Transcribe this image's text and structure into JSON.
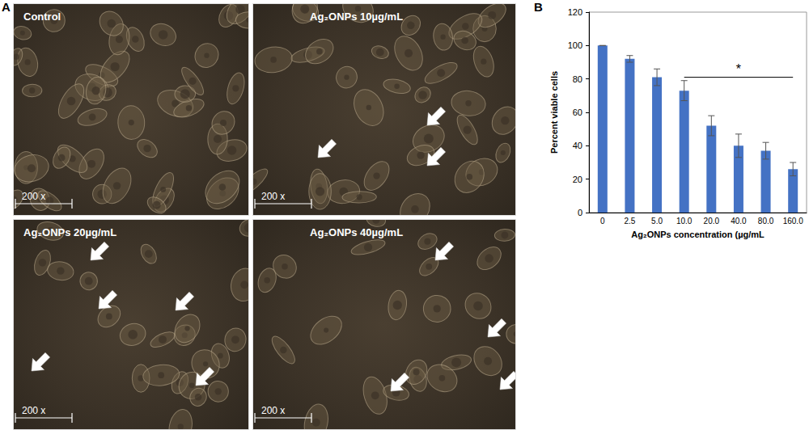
{
  "microscopy": {
    "letter": "A",
    "scale_bar": "200 x",
    "panels": [
      {
        "label": "Control"
      },
      {
        "label": "Ag₂ONPs 10µg/mL"
      },
      {
        "label": "Ag₂ONPs 20µg/mL"
      },
      {
        "label": "Ag₂ONPs 40µg/mL"
      }
    ]
  },
  "chart_data": {
    "type": "bar",
    "panel_letter": "B",
    "x_label": "Ag₂ONPs concentration (µg/mL",
    "y_label": "Percent viable cells",
    "categories": [
      "0",
      "2.5",
      "5.0",
      "10.0",
      "20.0",
      "40.0",
      "80.0",
      "160.0"
    ],
    "values": [
      100,
      92,
      81,
      73,
      52,
      40,
      37,
      26
    ],
    "errors": [
      0,
      2,
      5,
      6,
      6,
      7,
      5,
      4
    ],
    "color": "#4472c4",
    "ylim": [
      0,
      120
    ],
    "yticks": [
      0,
      20,
      40,
      60,
      80,
      100,
      120
    ],
    "grid": false,
    "annotations": [
      {
        "text": "*",
        "from": "10.0",
        "to": "160.0",
        "y": 81
      }
    ]
  }
}
